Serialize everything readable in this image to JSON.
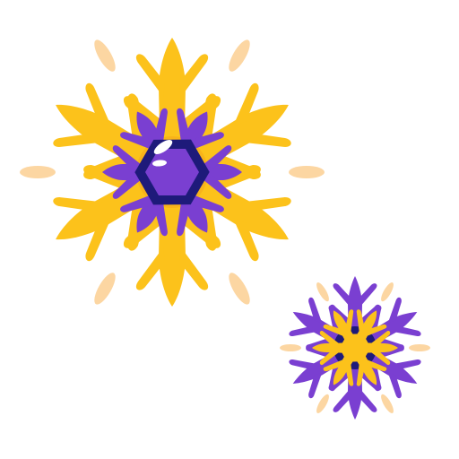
{
  "illustration": {
    "name": "snowflakes-illustration",
    "elements": [
      {
        "name": "large-snowflake-icon",
        "outer_color": "#FCC21B",
        "inner_color": "#7A3FD1",
        "center_color": "#1E1A7A",
        "glint_color": "#FFFFFF",
        "rays": 6
      },
      {
        "name": "small-snowflake-icon",
        "outer_color": "#7A3FD1",
        "inner_color": "#FCC21B",
        "center_color": "#1E1A7A",
        "rays": 6
      }
    ],
    "sparkle_color": "#FCD6A2"
  }
}
